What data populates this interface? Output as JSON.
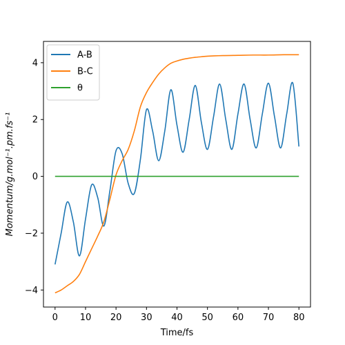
{
  "chart_data": {
    "type": "line",
    "xlabel": "Time/fs",
    "ylabel": "Momentum/g.mol⁻¹.pm.fs⁻¹",
    "xlim": [
      -3.8,
      83.8
    ],
    "ylim": [
      -4.6,
      4.75
    ],
    "x_ticks": [
      0,
      10,
      20,
      30,
      40,
      50,
      60,
      70,
      80
    ],
    "x_tick_labels": [
      "0",
      "10",
      "20",
      "30",
      "40",
      "50",
      "60",
      "70",
      "80"
    ],
    "y_ticks": [
      -4,
      -2,
      0,
      2,
      4
    ],
    "y_tick_labels": [
      "−4",
      "−2",
      "0",
      "2",
      "4"
    ],
    "grid": false,
    "legend_position": "upper left",
    "colors": {
      "A-B": "#1f77b4",
      "B-C": "#ff7f0e",
      "θ": "#2ca02c"
    },
    "series": [
      {
        "name": "A-B",
        "x": [
          0,
          2,
          4,
          6,
          8,
          10,
          12,
          14,
          16,
          18,
          20,
          22,
          24,
          26,
          28,
          30,
          32,
          34,
          36,
          38,
          40,
          42,
          44,
          46,
          48,
          50,
          52,
          54,
          56,
          58,
          60,
          62,
          64,
          66,
          68,
          70,
          72,
          74,
          76,
          78,
          80
        ],
        "y": [
          -3.1,
          -2.0,
          -0.9,
          -1.6,
          -2.8,
          -1.5,
          -0.3,
          -0.75,
          -1.75,
          -0.5,
          0.9,
          0.8,
          -0.25,
          -0.6,
          0.6,
          2.35,
          1.6,
          0.55,
          1.6,
          3.05,
          1.8,
          0.85,
          2.0,
          3.2,
          1.9,
          0.95,
          2.1,
          3.25,
          2.0,
          0.95,
          2.2,
          3.25,
          2.0,
          1.0,
          2.2,
          3.28,
          2.1,
          1.0,
          2.2,
          3.28,
          1.05
        ]
      },
      {
        "name": "B-C",
        "x": [
          0,
          2,
          4,
          6,
          8,
          10,
          12,
          14,
          16,
          18,
          20,
          22,
          24,
          26,
          28,
          30,
          32,
          34,
          36,
          38,
          40,
          42,
          44,
          46,
          48,
          50,
          55,
          60,
          65,
          70,
          75,
          80
        ],
        "y": [
          -4.1,
          -4.0,
          -3.85,
          -3.7,
          -3.45,
          -3.0,
          -2.55,
          -2.1,
          -1.6,
          -0.8,
          0.05,
          0.55,
          0.95,
          1.6,
          2.45,
          2.95,
          3.3,
          3.6,
          3.82,
          3.98,
          4.06,
          4.12,
          4.16,
          4.19,
          4.21,
          4.23,
          4.25,
          4.26,
          4.27,
          4.27,
          4.28,
          4.28
        ]
      },
      {
        "name": "θ",
        "x": [
          0,
          80
        ],
        "y": [
          0,
          0
        ]
      }
    ]
  }
}
